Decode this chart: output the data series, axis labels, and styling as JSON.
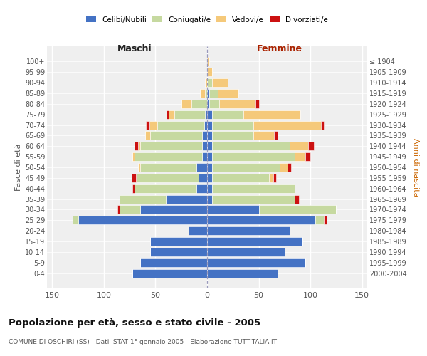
{
  "age_groups_bottom_to_top": [
    "0-4",
    "5-9",
    "10-14",
    "15-19",
    "20-24",
    "25-29",
    "30-34",
    "35-39",
    "40-44",
    "45-49",
    "50-54",
    "55-59",
    "60-64",
    "65-69",
    "70-74",
    "75-79",
    "80-84",
    "85-89",
    "90-94",
    "95-99",
    "100+"
  ],
  "birth_years_bottom_to_top": [
    "2000-2004",
    "1995-1999",
    "1990-1994",
    "1985-1989",
    "1980-1984",
    "1975-1979",
    "1970-1974",
    "1965-1969",
    "1960-1964",
    "1955-1959",
    "1950-1954",
    "1945-1949",
    "1940-1944",
    "1935-1939",
    "1930-1934",
    "1925-1929",
    "1920-1924",
    "1915-1919",
    "1910-1914",
    "1905-1909",
    "≤ 1904"
  ],
  "colors": {
    "celibi": "#4472C4",
    "coniugati": "#C6D9A0",
    "vedovi": "#F5C97A",
    "divorziati": "#CC1111"
  },
  "males_bottom_to_top": {
    "celibi": [
      72,
      65,
      55,
      55,
      18,
      125,
      65,
      40,
      10,
      8,
      10,
      5,
      5,
      5,
      3,
      2,
      0,
      0,
      0,
      0,
      0
    ],
    "coniugati": [
      0,
      0,
      0,
      0,
      0,
      5,
      20,
      45,
      60,
      60,
      55,
      65,
      60,
      50,
      45,
      30,
      15,
      2,
      0,
      0,
      0
    ],
    "vedovi": [
      0,
      0,
      0,
      0,
      0,
      0,
      0,
      0,
      0,
      1,
      2,
      2,
      2,
      5,
      8,
      5,
      10,
      5,
      2,
      0,
      0
    ],
    "divorziati": [
      0,
      0,
      0,
      0,
      0,
      0,
      2,
      0,
      2,
      4,
      0,
      0,
      3,
      0,
      3,
      2,
      0,
      0,
      0,
      0,
      0
    ]
  },
  "females_bottom_to_top": {
    "celibi": [
      68,
      95,
      75,
      92,
      80,
      105,
      50,
      5,
      5,
      5,
      5,
      5,
      5,
      5,
      5,
      5,
      2,
      2,
      0,
      0,
      0
    ],
    "coniugati": [
      0,
      0,
      0,
      0,
      0,
      8,
      75,
      80,
      80,
      55,
      65,
      80,
      75,
      40,
      40,
      30,
      10,
      8,
      5,
      0,
      0
    ],
    "vedovi": [
      0,
      0,
      0,
      0,
      0,
      0,
      0,
      0,
      0,
      4,
      8,
      10,
      18,
      20,
      65,
      55,
      35,
      20,
      15,
      5,
      2
    ],
    "divorziati": [
      0,
      0,
      0,
      0,
      0,
      3,
      0,
      4,
      0,
      3,
      3,
      5,
      5,
      3,
      3,
      0,
      3,
      0,
      0,
      0,
      0
    ]
  },
  "xlim": 155,
  "xtick_vals": [
    -150,
    -100,
    -50,
    0,
    50,
    100,
    150
  ],
  "title": "Popolazione per età, sesso e stato civile - 2005",
  "subtitle": "COMUNE DI OSCHIRI (SS) - Dati ISTAT 1° gennaio 2005 - Elaborazione TUTTITALIA.IT",
  "ylabel_left": "Fasce di età",
  "ylabel_right": "Anni di nascita",
  "legend_labels": [
    "Celibi/Nubili",
    "Coniugati/e",
    "Vedovi/e",
    "Divorziati/e"
  ],
  "maschi_label": "Maschi",
  "femmine_label": "Femmine",
  "bg_color": "#FFFFFF",
  "plot_bg": "#EFEFEF"
}
